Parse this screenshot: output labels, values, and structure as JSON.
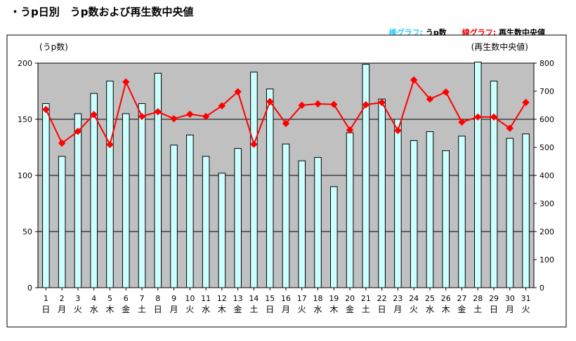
{
  "page": {
    "title": "・うp日別　うp数および再生数中央値"
  },
  "legend": {
    "bar_name": "棒グラフ",
    "bar_sep": ": ",
    "bar_text": "うp数",
    "line_name": "線グラフ",
    "line_sep": ": ",
    "line_text": "再生数中央値"
  },
  "chart_data": {
    "type": "bar",
    "categories": [
      "1",
      "2",
      "3",
      "4",
      "5",
      "6",
      "7",
      "8",
      "9",
      "10",
      "11",
      "12",
      "13",
      "14",
      "15",
      "16",
      "17",
      "18",
      "19",
      "20",
      "21",
      "22",
      "23",
      "24",
      "25",
      "26",
      "27",
      "28",
      "29",
      "30",
      "31"
    ],
    "weekdays": [
      "日",
      "月",
      "火",
      "水",
      "木",
      "金",
      "土",
      "日",
      "月",
      "火",
      "水",
      "木",
      "金",
      "土",
      "日",
      "月",
      "火",
      "水",
      "木",
      "金",
      "土",
      "日",
      "月",
      "火",
      "水",
      "木",
      "金",
      "土",
      "日",
      "月",
      "火"
    ],
    "series": [
      {
        "name": "うp数",
        "type": "bar",
        "axis": "left",
        "values": [
          164,
          117,
          155,
          173,
          184,
          155,
          164,
          191,
          127,
          136,
          117,
          102,
          124,
          192,
          177,
          128,
          113,
          116,
          90,
          138,
          199,
          168,
          150,
          131,
          139,
          122,
          135,
          201,
          184,
          133,
          137
        ]
      },
      {
        "name": "再生数中央値",
        "type": "line",
        "axis": "right",
        "values": [
          635,
          515,
          557,
          617,
          510,
          733,
          610,
          627,
          602,
          618,
          610,
          648,
          698,
          511,
          663,
          585,
          650,
          655,
          653,
          562,
          652,
          660,
          560,
          740,
          672,
          697,
          590,
          608,
          608,
          568,
          660
        ]
      }
    ],
    "y_left_label": "(うp数)",
    "y_right_label": "(再生数中央値)",
    "y_left_ticks": [
      0,
      50,
      100,
      150,
      200
    ],
    "y_right_ticks": [
      0,
      100,
      200,
      300,
      400,
      500,
      600,
      700,
      800
    ],
    "ylim_left": [
      0,
      200
    ],
    "ylim_right": [
      0,
      800
    ],
    "colors": {
      "plot_bg": "#c0c0c0",
      "bar_fill": "#ccffff",
      "bar_stroke": "#000000",
      "line": "#ff0000",
      "marker": "#ff0000",
      "grid": "#000000"
    },
    "grid": true
  }
}
